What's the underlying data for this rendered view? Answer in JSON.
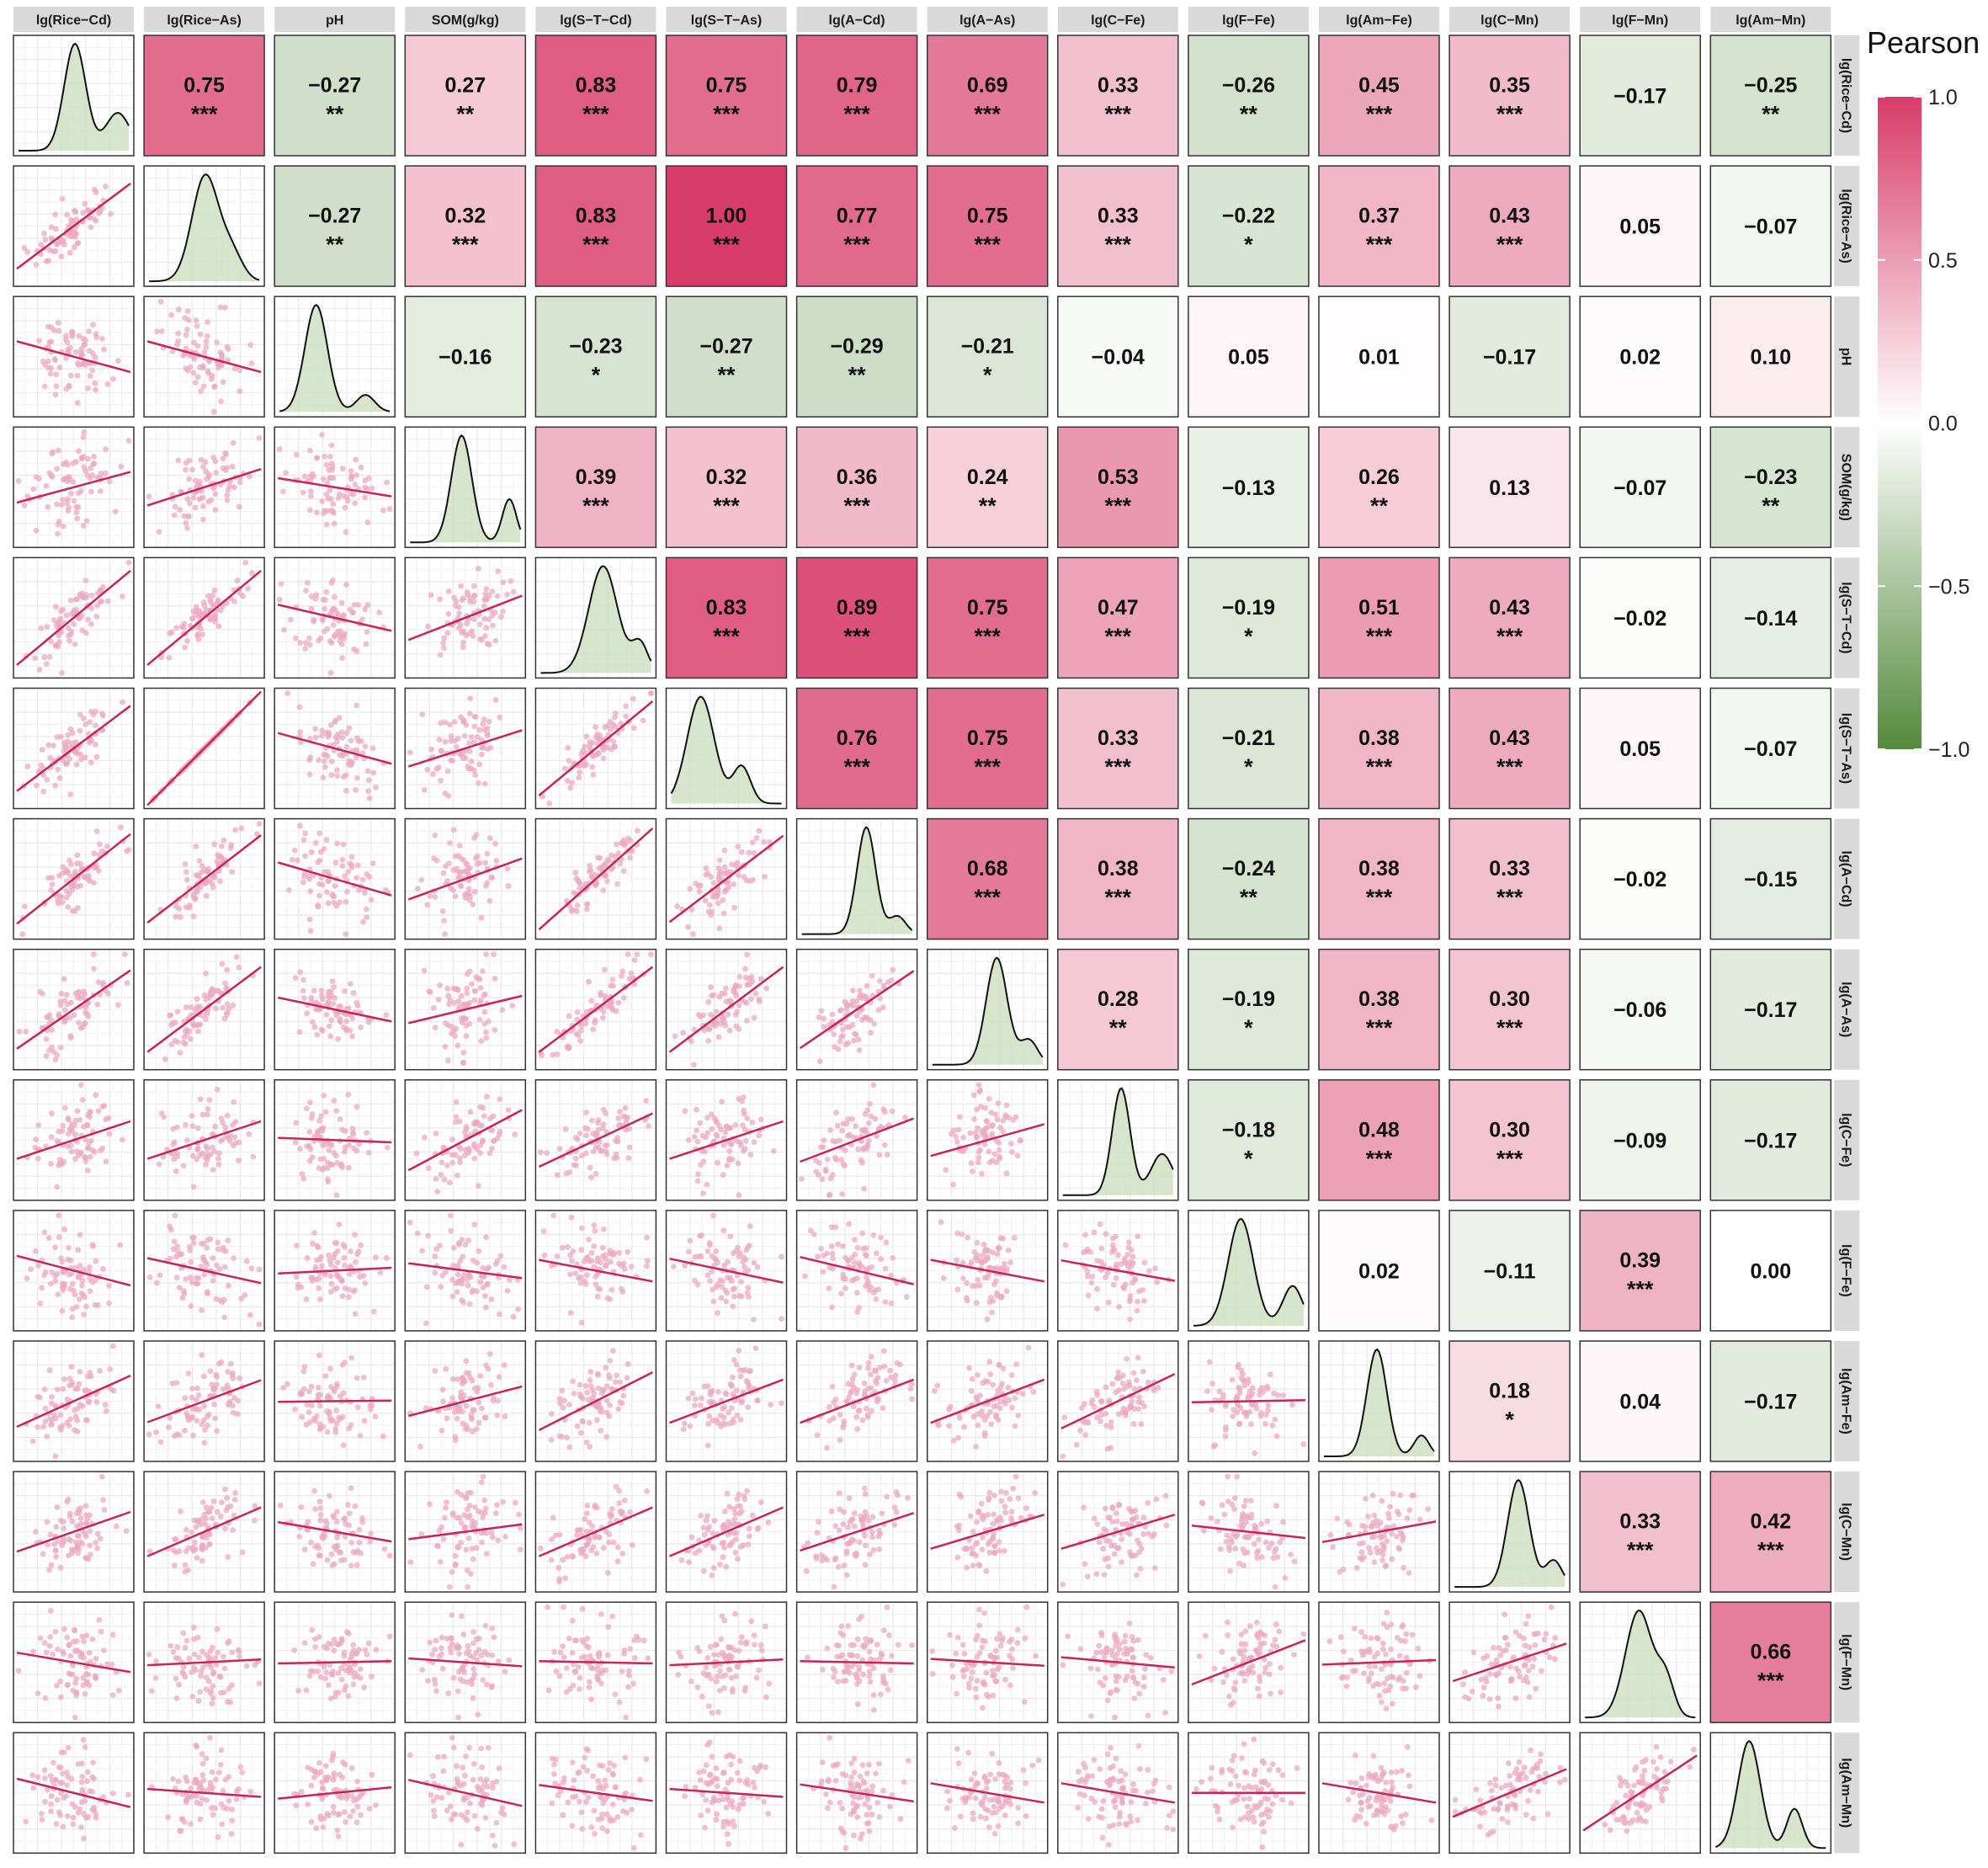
{
  "legend": {
    "title": "Pearson r",
    "ticks": [
      "1.0",
      "0.5",
      "0.0",
      "−0.5",
      "−1.0"
    ],
    "colors": {
      "positive": "#d83c6a",
      "zero": "#ffffff",
      "negative": "#548a3c"
    }
  },
  "chart_data": {
    "type": "heatmap",
    "subtype": "correlation-matrix",
    "variables": [
      "lg(Rice−Cd)",
      "lg(Rice−As)",
      "pH",
      "SOM(g/kg)",
      "lg(S−T−Cd)",
      "lg(S−T−As)",
      "lg(A−Cd)",
      "lg(A−As)",
      "lg(C−Fe)",
      "lg(F−Fe)",
      "lg(Am−Fe)",
      "lg(C−Mn)",
      "lg(F−Mn)",
      "lg(Am−Mn)"
    ],
    "upper": [
      {
        "row": 0,
        "col": 1,
        "r": "0.75",
        "sig": "***"
      },
      {
        "row": 0,
        "col": 2,
        "r": "−0.27",
        "sig": "**"
      },
      {
        "row": 0,
        "col": 3,
        "r": "0.27",
        "sig": "**"
      },
      {
        "row": 0,
        "col": 4,
        "r": "0.83",
        "sig": "***"
      },
      {
        "row": 0,
        "col": 5,
        "r": "0.75",
        "sig": "***"
      },
      {
        "row": 0,
        "col": 6,
        "r": "0.79",
        "sig": "***"
      },
      {
        "row": 0,
        "col": 7,
        "r": "0.69",
        "sig": "***"
      },
      {
        "row": 0,
        "col": 8,
        "r": "0.33",
        "sig": "***"
      },
      {
        "row": 0,
        "col": 9,
        "r": "−0.26",
        "sig": "**"
      },
      {
        "row": 0,
        "col": 10,
        "r": "0.45",
        "sig": "***"
      },
      {
        "row": 0,
        "col": 11,
        "r": "0.35",
        "sig": "***"
      },
      {
        "row": 0,
        "col": 12,
        "r": "−0.17",
        "sig": ""
      },
      {
        "row": 0,
        "col": 13,
        "r": "−0.25",
        "sig": "**"
      },
      {
        "row": 1,
        "col": 2,
        "r": "−0.27",
        "sig": "**"
      },
      {
        "row": 1,
        "col": 3,
        "r": "0.32",
        "sig": "***"
      },
      {
        "row": 1,
        "col": 4,
        "r": "0.83",
        "sig": "***"
      },
      {
        "row": 1,
        "col": 5,
        "r": "1.00",
        "sig": "***"
      },
      {
        "row": 1,
        "col": 6,
        "r": "0.77",
        "sig": "***"
      },
      {
        "row": 1,
        "col": 7,
        "r": "0.75",
        "sig": "***"
      },
      {
        "row": 1,
        "col": 8,
        "r": "0.33",
        "sig": "***"
      },
      {
        "row": 1,
        "col": 9,
        "r": "−0.22",
        "sig": "*"
      },
      {
        "row": 1,
        "col": 10,
        "r": "0.37",
        "sig": "***"
      },
      {
        "row": 1,
        "col": 11,
        "r": "0.43",
        "sig": "***"
      },
      {
        "row": 1,
        "col": 12,
        "r": "0.05",
        "sig": ""
      },
      {
        "row": 1,
        "col": 13,
        "r": "−0.07",
        "sig": ""
      },
      {
        "row": 2,
        "col": 3,
        "r": "−0.16",
        "sig": ""
      },
      {
        "row": 2,
        "col": 4,
        "r": "−0.23",
        "sig": "*"
      },
      {
        "row": 2,
        "col": 5,
        "r": "−0.27",
        "sig": "**"
      },
      {
        "row": 2,
        "col": 6,
        "r": "−0.29",
        "sig": "**"
      },
      {
        "row": 2,
        "col": 7,
        "r": "−0.21",
        "sig": "*"
      },
      {
        "row": 2,
        "col": 8,
        "r": "−0.04",
        "sig": ""
      },
      {
        "row": 2,
        "col": 9,
        "r": "0.05",
        "sig": ""
      },
      {
        "row": 2,
        "col": 10,
        "r": "0.01",
        "sig": ""
      },
      {
        "row": 2,
        "col": 11,
        "r": "−0.17",
        "sig": ""
      },
      {
        "row": 2,
        "col": 12,
        "r": "0.02",
        "sig": ""
      },
      {
        "row": 2,
        "col": 13,
        "r": "0.10",
        "sig": ""
      },
      {
        "row": 3,
        "col": 4,
        "r": "0.39",
        "sig": "***"
      },
      {
        "row": 3,
        "col": 5,
        "r": "0.32",
        "sig": "***"
      },
      {
        "row": 3,
        "col": 6,
        "r": "0.36",
        "sig": "***"
      },
      {
        "row": 3,
        "col": 7,
        "r": "0.24",
        "sig": "**"
      },
      {
        "row": 3,
        "col": 8,
        "r": "0.53",
        "sig": "***"
      },
      {
        "row": 3,
        "col": 9,
        "r": "−0.13",
        "sig": ""
      },
      {
        "row": 3,
        "col": 10,
        "r": "0.26",
        "sig": "**"
      },
      {
        "row": 3,
        "col": 11,
        "r": "0.13",
        "sig": ""
      },
      {
        "row": 3,
        "col": 12,
        "r": "−0.07",
        "sig": ""
      },
      {
        "row": 3,
        "col": 13,
        "r": "−0.23",
        "sig": "**"
      },
      {
        "row": 4,
        "col": 5,
        "r": "0.83",
        "sig": "***"
      },
      {
        "row": 4,
        "col": 6,
        "r": "0.89",
        "sig": "***"
      },
      {
        "row": 4,
        "col": 7,
        "r": "0.75",
        "sig": "***"
      },
      {
        "row": 4,
        "col": 8,
        "r": "0.47",
        "sig": "***"
      },
      {
        "row": 4,
        "col": 9,
        "r": "−0.19",
        "sig": "*"
      },
      {
        "row": 4,
        "col": 10,
        "r": "0.51",
        "sig": "***"
      },
      {
        "row": 4,
        "col": 11,
        "r": "0.43",
        "sig": "***"
      },
      {
        "row": 4,
        "col": 12,
        "r": "−0.02",
        "sig": ""
      },
      {
        "row": 4,
        "col": 13,
        "r": "−0.14",
        "sig": ""
      },
      {
        "row": 5,
        "col": 6,
        "r": "0.76",
        "sig": "***"
      },
      {
        "row": 5,
        "col": 7,
        "r": "0.75",
        "sig": "***"
      },
      {
        "row": 5,
        "col": 8,
        "r": "0.33",
        "sig": "***"
      },
      {
        "row": 5,
        "col": 9,
        "r": "−0.21",
        "sig": "*"
      },
      {
        "row": 5,
        "col": 10,
        "r": "0.38",
        "sig": "***"
      },
      {
        "row": 5,
        "col": 11,
        "r": "0.43",
        "sig": "***"
      },
      {
        "row": 5,
        "col": 12,
        "r": "0.05",
        "sig": ""
      },
      {
        "row": 5,
        "col": 13,
        "r": "−0.07",
        "sig": ""
      },
      {
        "row": 6,
        "col": 7,
        "r": "0.68",
        "sig": "***"
      },
      {
        "row": 6,
        "col": 8,
        "r": "0.38",
        "sig": "***"
      },
      {
        "row": 6,
        "col": 9,
        "r": "−0.24",
        "sig": "**"
      },
      {
        "row": 6,
        "col": 10,
        "r": "0.38",
        "sig": "***"
      },
      {
        "row": 6,
        "col": 11,
        "r": "0.33",
        "sig": "***"
      },
      {
        "row": 6,
        "col": 12,
        "r": "−0.02",
        "sig": ""
      },
      {
        "row": 6,
        "col": 13,
        "r": "−0.15",
        "sig": ""
      },
      {
        "row": 7,
        "col": 8,
        "r": "0.28",
        "sig": "**"
      },
      {
        "row": 7,
        "col": 9,
        "r": "−0.19",
        "sig": "*"
      },
      {
        "row": 7,
        "col": 10,
        "r": "0.38",
        "sig": "***"
      },
      {
        "row": 7,
        "col": 11,
        "r": "0.30",
        "sig": "***"
      },
      {
        "row": 7,
        "col": 12,
        "r": "−0.06",
        "sig": ""
      },
      {
        "row": 7,
        "col": 13,
        "r": "−0.17",
        "sig": ""
      },
      {
        "row": 8,
        "col": 9,
        "r": "−0.18",
        "sig": "*"
      },
      {
        "row": 8,
        "col": 10,
        "r": "0.48",
        "sig": "***"
      },
      {
        "row": 8,
        "col": 11,
        "r": "0.30",
        "sig": "***"
      },
      {
        "row": 8,
        "col": 12,
        "r": "−0.09",
        "sig": ""
      },
      {
        "row": 8,
        "col": 13,
        "r": "−0.17",
        "sig": ""
      },
      {
        "row": 9,
        "col": 10,
        "r": "0.02",
        "sig": ""
      },
      {
        "row": 9,
        "col": 11,
        "r": "−0.11",
        "sig": ""
      },
      {
        "row": 9,
        "col": 12,
        "r": "0.39",
        "sig": "***"
      },
      {
        "row": 9,
        "col": 13,
        "r": "0.00",
        "sig": ""
      },
      {
        "row": 10,
        "col": 11,
        "r": "0.18",
        "sig": "*"
      },
      {
        "row": 10,
        "col": 12,
        "r": "0.04",
        "sig": ""
      },
      {
        "row": 10,
        "col": 13,
        "r": "−0.17",
        "sig": ""
      },
      {
        "row": 11,
        "col": 12,
        "r": "0.33",
        "sig": "***"
      },
      {
        "row": 11,
        "col": 13,
        "r": "0.42",
        "sig": "***"
      },
      {
        "row": 12,
        "col": 13,
        "r": "0.66",
        "sig": "***"
      }
    ],
    "diagonal": "density",
    "lower": "scatter-with-linear-fit",
    "colorscale": {
      "min": -1,
      "max": 1,
      "low": "#548a3c",
      "mid": "#ffffff",
      "high": "#d83c6a"
    },
    "colors": {
      "density_fill": "#cfe0c3",
      "scatter_point": "#eba9c0",
      "fit_line": "#c8245a",
      "strip_background": "#d9d9d9",
      "grid_line": "#ebebeb"
    }
  }
}
